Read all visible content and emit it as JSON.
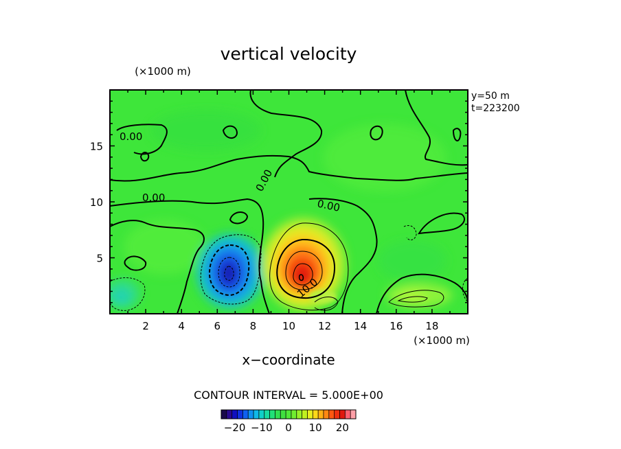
{
  "chart_data": {
    "type": "heatmap",
    "title": "vertical velocity",
    "xlabel": "x−coordinate",
    "ylabel": "",
    "x_unit": "(×1000 m)",
    "y_unit": "(×1000 m)",
    "xlim": [
      0,
      20
    ],
    "ylim": [
      0,
      20
    ],
    "x_ticks": [
      2,
      4,
      6,
      8,
      10,
      12,
      14,
      16,
      18
    ],
    "y_ticks": [
      5,
      10,
      15
    ],
    "info": [
      "y=50 m",
      "t=223200"
    ],
    "contour_interval_text": "CONTOUR INTERVAL = 5.000E+00",
    "contour_labels": [
      "0.00",
      "0.00",
      "0.00",
      "0.00",
      "10.0"
    ],
    "colorbar": {
      "range": [
        -25,
        25
      ],
      "tick_values": [
        -20,
        -10,
        0,
        10,
        20
      ],
      "tick_labels": [
        "−20",
        "−10",
        "0",
        "10",
        "20"
      ]
    },
    "features": [
      {
        "kind": "updraft",
        "x": 10.8,
        "y": 3.4,
        "peak": 22
      },
      {
        "kind": "downdraft",
        "x": 6.7,
        "y": 3.5,
        "peak": -20
      }
    ]
  }
}
